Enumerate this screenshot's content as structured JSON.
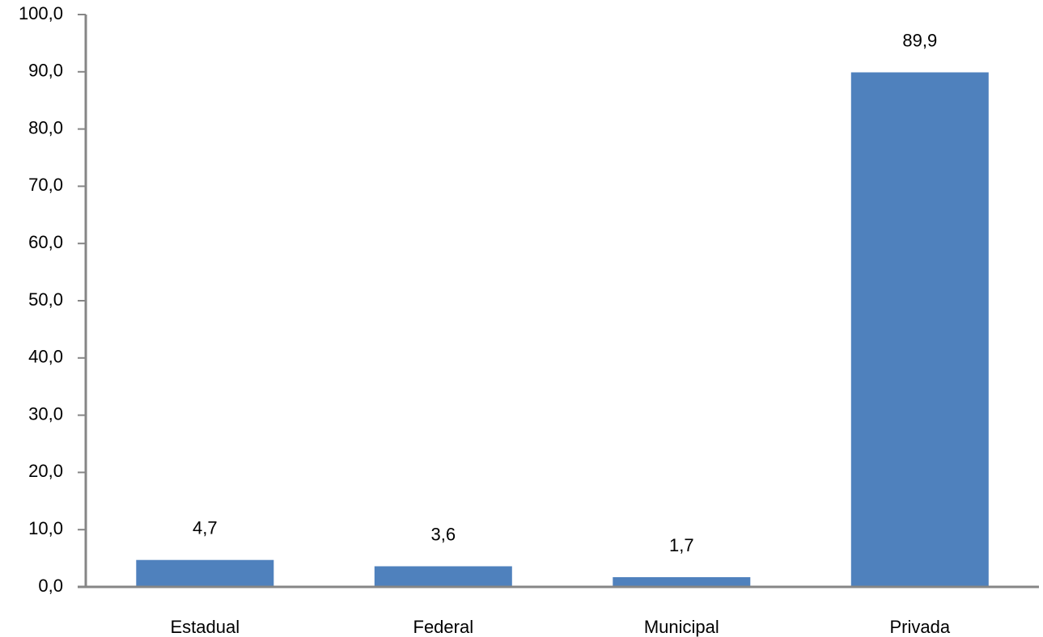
{
  "chart_data": {
    "type": "bar",
    "title": "",
    "xlabel": "",
    "ylabel": "",
    "categories": [
      "Estadual",
      "Federal",
      "Municipal",
      "Privada"
    ],
    "values": [
      4.7,
      3.6,
      1.7,
      89.9
    ],
    "data_labels": [
      "4,7",
      "3,6",
      "1,7",
      "89,9"
    ],
    "ylim": [
      0,
      100
    ],
    "yticks": [
      0,
      10,
      20,
      30,
      40,
      50,
      60,
      70,
      80,
      90,
      100
    ],
    "ytick_labels": [
      "0,0",
      "10,0",
      "20,0",
      "30,0",
      "40,0",
      "50,0",
      "60,0",
      "70,0",
      "80,0",
      "90,0",
      "100,0"
    ],
    "grid": false,
    "legend": "none",
    "bar_color": "#4F81BD",
    "axis_color": "#868686"
  }
}
